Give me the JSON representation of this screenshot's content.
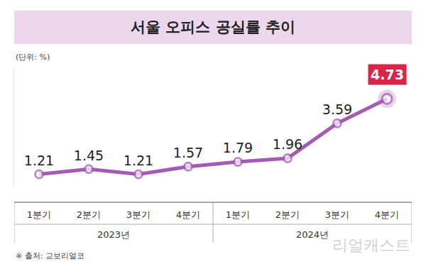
{
  "chart_data": {
    "type": "line",
    "title": "서울 오피스 공실률 추이",
    "subtitle": "(단위: %)",
    "categories": [
      "1분기",
      "2분기",
      "3분기",
      "4분기",
      "1분기",
      "2분기",
      "3분기",
      "4분기"
    ],
    "groups": [
      {
        "label": "2023년",
        "size": 4
      },
      {
        "label": "2024년",
        "size": 4
      }
    ],
    "values": [
      1.21,
      1.45,
      1.21,
      1.57,
      1.79,
      1.96,
      3.59,
      4.73
    ],
    "color": "#a35bb3",
    "marker": "circle",
    "ylim": [
      0.6,
      6.2
    ],
    "grid": false,
    "data_labels": true,
    "tick_labels": "x",
    "source": "※ 출처: 교보리얼코",
    "watermark": "리얼캐스트"
  }
}
